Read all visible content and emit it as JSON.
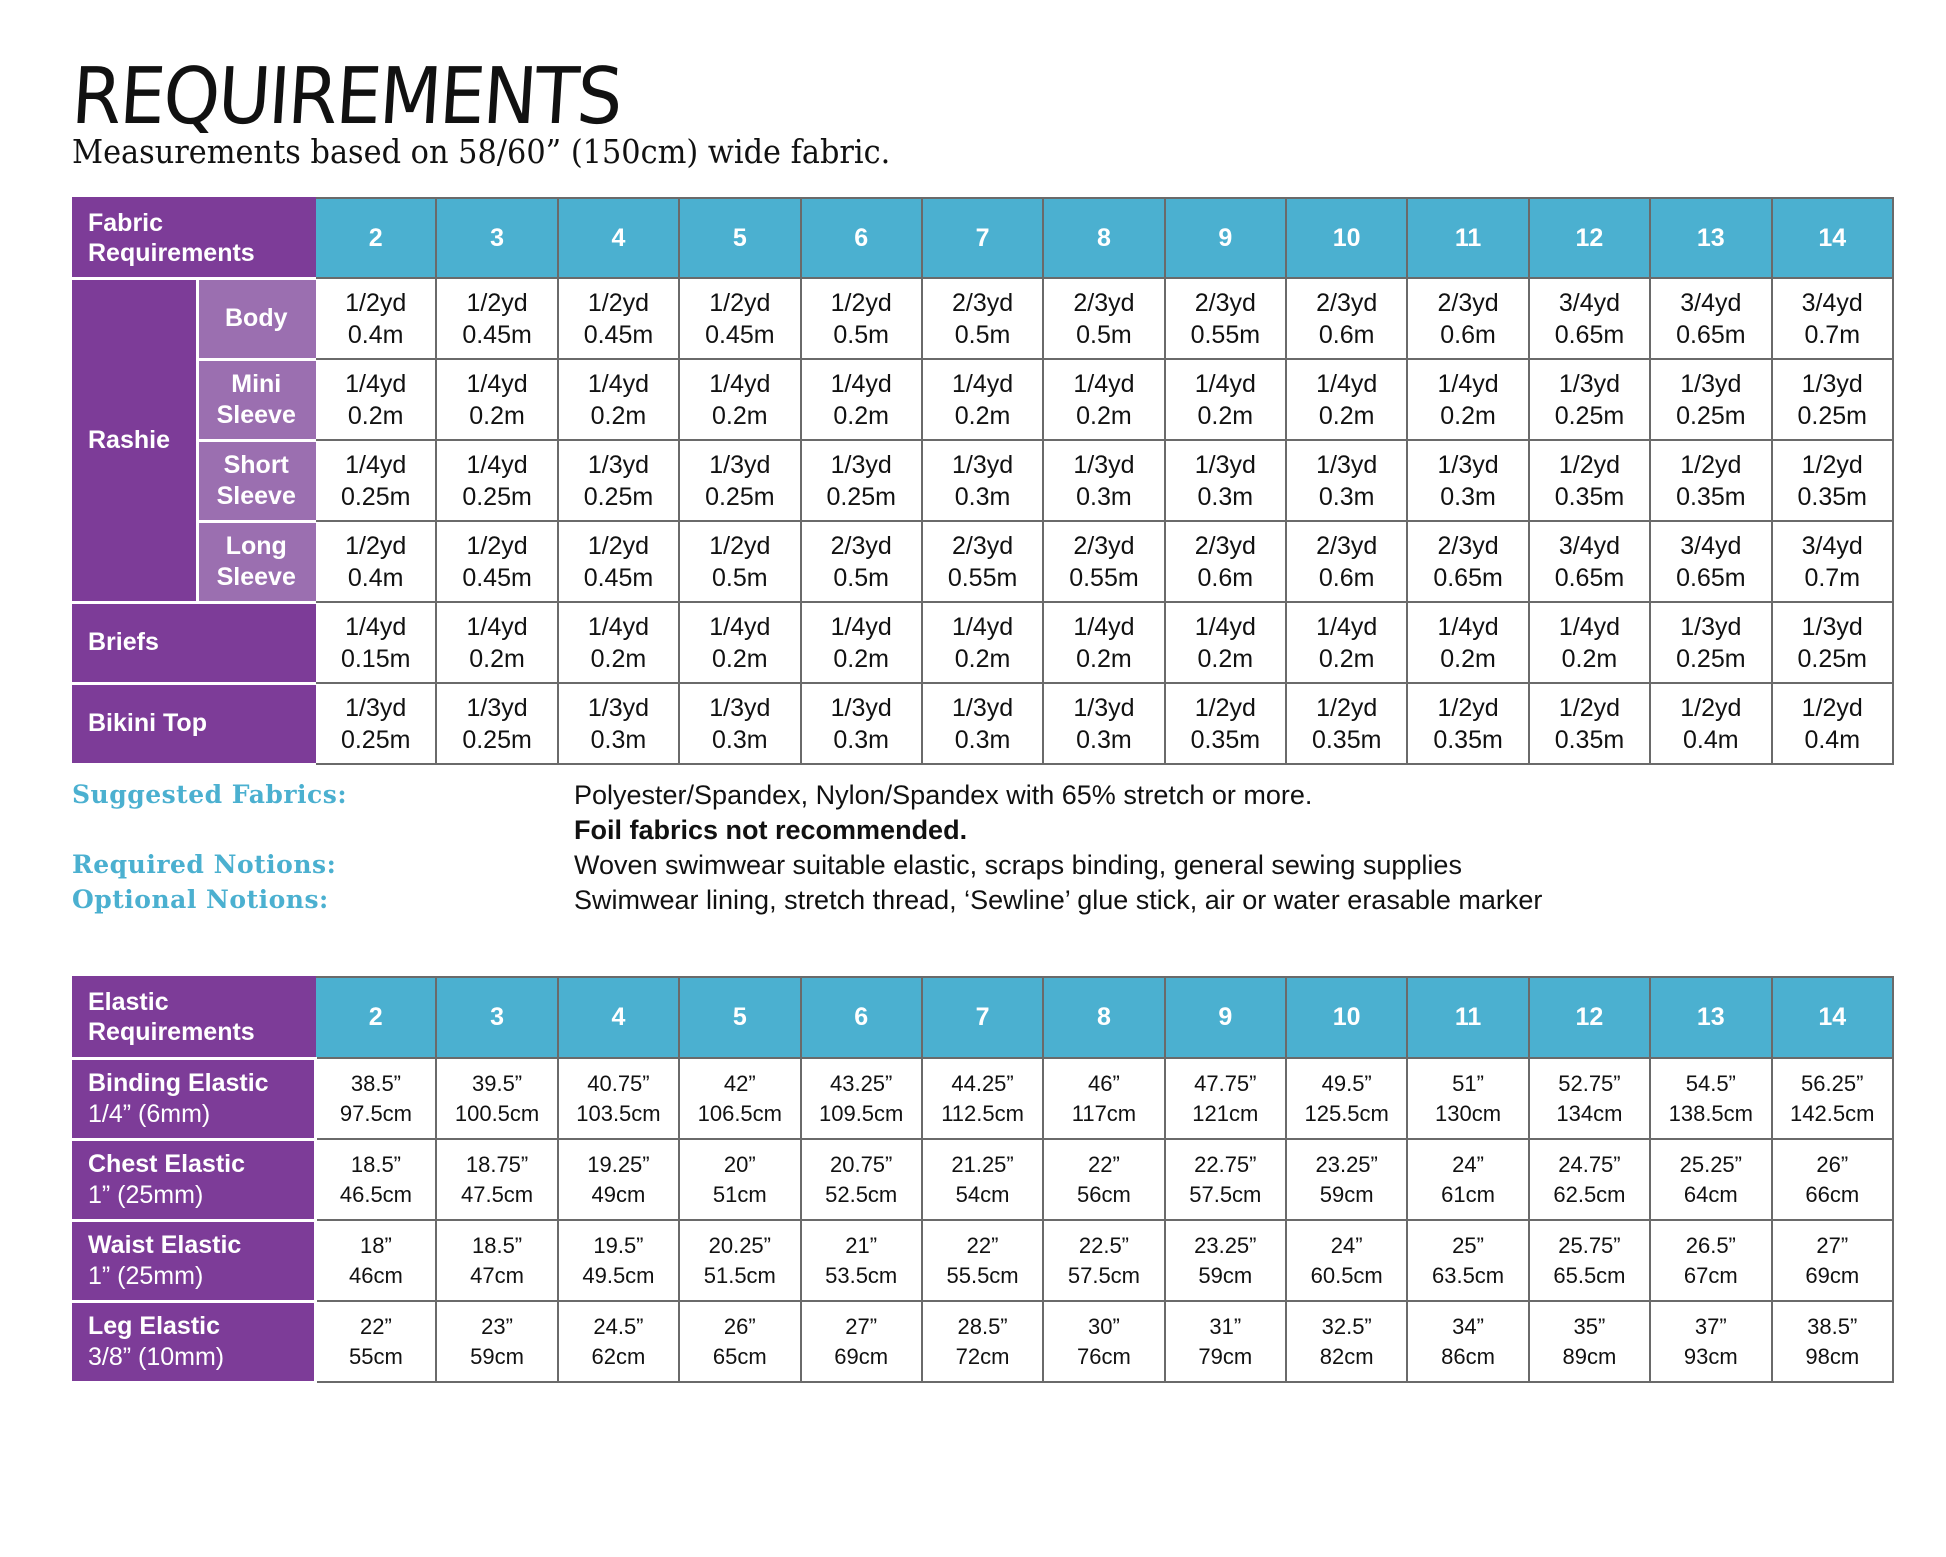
{
  "title": "REQUIREMENTS",
  "subtitle": "Measurements based on 58/60” (150cm) wide fabric.",
  "colors": {
    "purple": "#7d3c98",
    "light_purple": "#9b6fb0",
    "teal": "#4bb0d0"
  },
  "sizes": [
    "2",
    "3",
    "4",
    "5",
    "6",
    "7",
    "8",
    "9",
    "10",
    "11",
    "12",
    "13",
    "14"
  ],
  "fabric_table": {
    "header": "Fabric Requirements",
    "group_label": "Rashie",
    "rows": [
      {
        "group": "Rashie",
        "label": "Body",
        "cells": [
          [
            "1/2yd",
            "0.4m"
          ],
          [
            "1/2yd",
            "0.45m"
          ],
          [
            "1/2yd",
            "0.45m"
          ],
          [
            "1/2yd",
            "0.45m"
          ],
          [
            "1/2yd",
            "0.5m"
          ],
          [
            "2/3yd",
            "0.5m"
          ],
          [
            "2/3yd",
            "0.5m"
          ],
          [
            "2/3yd",
            "0.55m"
          ],
          [
            "2/3yd",
            "0.6m"
          ],
          [
            "2/3yd",
            "0.6m"
          ],
          [
            "3/4yd",
            "0.65m"
          ],
          [
            "3/4yd",
            "0.65m"
          ],
          [
            "3/4yd",
            "0.7m"
          ]
        ]
      },
      {
        "group": "Rashie",
        "label": "Mini Sleeve",
        "cells": [
          [
            "1/4yd",
            "0.2m"
          ],
          [
            "1/4yd",
            "0.2m"
          ],
          [
            "1/4yd",
            "0.2m"
          ],
          [
            "1/4yd",
            "0.2m"
          ],
          [
            "1/4yd",
            "0.2m"
          ],
          [
            "1/4yd",
            "0.2m"
          ],
          [
            "1/4yd",
            "0.2m"
          ],
          [
            "1/4yd",
            "0.2m"
          ],
          [
            "1/4yd",
            "0.2m"
          ],
          [
            "1/4yd",
            "0.2m"
          ],
          [
            "1/3yd",
            "0.25m"
          ],
          [
            "1/3yd",
            "0.25m"
          ],
          [
            "1/3yd",
            "0.25m"
          ]
        ]
      },
      {
        "group": "Rashie",
        "label": "Short Sleeve",
        "cells": [
          [
            "1/4yd",
            "0.25m"
          ],
          [
            "1/4yd",
            "0.25m"
          ],
          [
            "1/3yd",
            "0.25m"
          ],
          [
            "1/3yd",
            "0.25m"
          ],
          [
            "1/3yd",
            "0.25m"
          ],
          [
            "1/3yd",
            "0.3m"
          ],
          [
            "1/3yd",
            "0.3m"
          ],
          [
            "1/3yd",
            "0.3m"
          ],
          [
            "1/3yd",
            "0.3m"
          ],
          [
            "1/3yd",
            "0.3m"
          ],
          [
            "1/2yd",
            "0.35m"
          ],
          [
            "1/2yd",
            "0.35m"
          ],
          [
            "1/2yd",
            "0.35m"
          ]
        ]
      },
      {
        "group": "Rashie",
        "label": "Long Sleeve",
        "cells": [
          [
            "1/2yd",
            "0.4m"
          ],
          [
            "1/2yd",
            "0.45m"
          ],
          [
            "1/2yd",
            "0.45m"
          ],
          [
            "1/2yd",
            "0.5m"
          ],
          [
            "2/3yd",
            "0.5m"
          ],
          [
            "2/3yd",
            "0.55m"
          ],
          [
            "2/3yd",
            "0.55m"
          ],
          [
            "2/3yd",
            "0.6m"
          ],
          [
            "2/3yd",
            "0.6m"
          ],
          [
            "2/3yd",
            "0.65m"
          ],
          [
            "3/4yd",
            "0.65m"
          ],
          [
            "3/4yd",
            "0.65m"
          ],
          [
            "3/4yd",
            "0.7m"
          ]
        ]
      },
      {
        "group": null,
        "label": "Briefs",
        "cells": [
          [
            "1/4yd",
            "0.15m"
          ],
          [
            "1/4yd",
            "0.2m"
          ],
          [
            "1/4yd",
            "0.2m"
          ],
          [
            "1/4yd",
            "0.2m"
          ],
          [
            "1/4yd",
            "0.2m"
          ],
          [
            "1/4yd",
            "0.2m"
          ],
          [
            "1/4yd",
            "0.2m"
          ],
          [
            "1/4yd",
            "0.2m"
          ],
          [
            "1/4yd",
            "0.2m"
          ],
          [
            "1/4yd",
            "0.2m"
          ],
          [
            "1/4yd",
            "0.2m"
          ],
          [
            "1/3yd",
            "0.25m"
          ],
          [
            "1/3yd",
            "0.25m"
          ]
        ]
      },
      {
        "group": null,
        "label": "Bikini Top",
        "cells": [
          [
            "1/3yd",
            "0.25m"
          ],
          [
            "1/3yd",
            "0.25m"
          ],
          [
            "1/3yd",
            "0.3m"
          ],
          [
            "1/3yd",
            "0.3m"
          ],
          [
            "1/3yd",
            "0.3m"
          ],
          [
            "1/3yd",
            "0.3m"
          ],
          [
            "1/3yd",
            "0.3m"
          ],
          [
            "1/2yd",
            "0.35m"
          ],
          [
            "1/2yd",
            "0.35m"
          ],
          [
            "1/2yd",
            "0.35m"
          ],
          [
            "1/2yd",
            "0.35m"
          ],
          [
            "1/2yd",
            "0.4m"
          ],
          [
            "1/2yd",
            "0.4m"
          ]
        ]
      }
    ]
  },
  "notes": [
    {
      "label": "Suggested Fabrics:",
      "value": "Polyester/Spandex, Nylon/Spandex with 65% stretch or more.",
      "value2": "Foil fabrics not recommended."
    },
    {
      "label": "Required Notions:",
      "value": "Woven swimwear suitable elastic, scraps binding, general sewing supplies"
    },
    {
      "label": "Optional Notions:",
      "value": "Swimwear lining, stretch thread, ‘Sewline’ glue stick, air or water erasable marker"
    }
  ],
  "elastic_table": {
    "header": "Elastic Requirements",
    "rows": [
      {
        "label": "Binding Elastic",
        "width": "1/4” (6mm)",
        "cells": [
          [
            "38.5”",
            "97.5cm"
          ],
          [
            "39.5”",
            "100.5cm"
          ],
          [
            "40.75”",
            "103.5cm"
          ],
          [
            "42”",
            "106.5cm"
          ],
          [
            "43.25”",
            "109.5cm"
          ],
          [
            "44.25”",
            "112.5cm"
          ],
          [
            "46”",
            "117cm"
          ],
          [
            "47.75”",
            "121cm"
          ],
          [
            "49.5”",
            "125.5cm"
          ],
          [
            "51”",
            "130cm"
          ],
          [
            "52.75”",
            "134cm"
          ],
          [
            "54.5”",
            "138.5cm"
          ],
          [
            "56.25”",
            "142.5cm"
          ]
        ]
      },
      {
        "label": "Chest Elastic",
        "width": "1” (25mm)",
        "cells": [
          [
            "18.5”",
            "46.5cm"
          ],
          [
            "18.75”",
            "47.5cm"
          ],
          [
            "19.25”",
            "49cm"
          ],
          [
            "20”",
            "51cm"
          ],
          [
            "20.75”",
            "52.5cm"
          ],
          [
            "21.25”",
            "54cm"
          ],
          [
            "22”",
            "56cm"
          ],
          [
            "22.75”",
            "57.5cm"
          ],
          [
            "23.25”",
            "59cm"
          ],
          [
            "24”",
            "61cm"
          ],
          [
            "24.75”",
            "62.5cm"
          ],
          [
            "25.25”",
            "64cm"
          ],
          [
            "26”",
            "66cm"
          ]
        ]
      },
      {
        "label": "Waist Elastic",
        "width": "1” (25mm)",
        "cells": [
          [
            "18”",
            "46cm"
          ],
          [
            "18.5”",
            "47cm"
          ],
          [
            "19.5”",
            "49.5cm"
          ],
          [
            "20.25”",
            "51.5cm"
          ],
          [
            "21”",
            "53.5cm"
          ],
          [
            "22”",
            "55.5cm"
          ],
          [
            "22.5”",
            "57.5cm"
          ],
          [
            "23.25”",
            "59cm"
          ],
          [
            "24”",
            "60.5cm"
          ],
          [
            "25”",
            "63.5cm"
          ],
          [
            "25.75”",
            "65.5cm"
          ],
          [
            "26.5”",
            "67cm"
          ],
          [
            "27”",
            "69cm"
          ]
        ]
      },
      {
        "label": "Leg Elastic",
        "width": "3/8” (10mm)",
        "cells": [
          [
            "22”",
            "55cm"
          ],
          [
            "23”",
            "59cm"
          ],
          [
            "24.5”",
            "62cm"
          ],
          [
            "26”",
            "65cm"
          ],
          [
            "27”",
            "69cm"
          ],
          [
            "28.5”",
            "72cm"
          ],
          [
            "30”",
            "76cm"
          ],
          [
            "31”",
            "79cm"
          ],
          [
            "32.5”",
            "82cm"
          ],
          [
            "34”",
            "86cm"
          ],
          [
            "35”",
            "89cm"
          ],
          [
            "37”",
            "93cm"
          ],
          [
            "38.5”",
            "98cm"
          ]
        ]
      }
    ]
  }
}
